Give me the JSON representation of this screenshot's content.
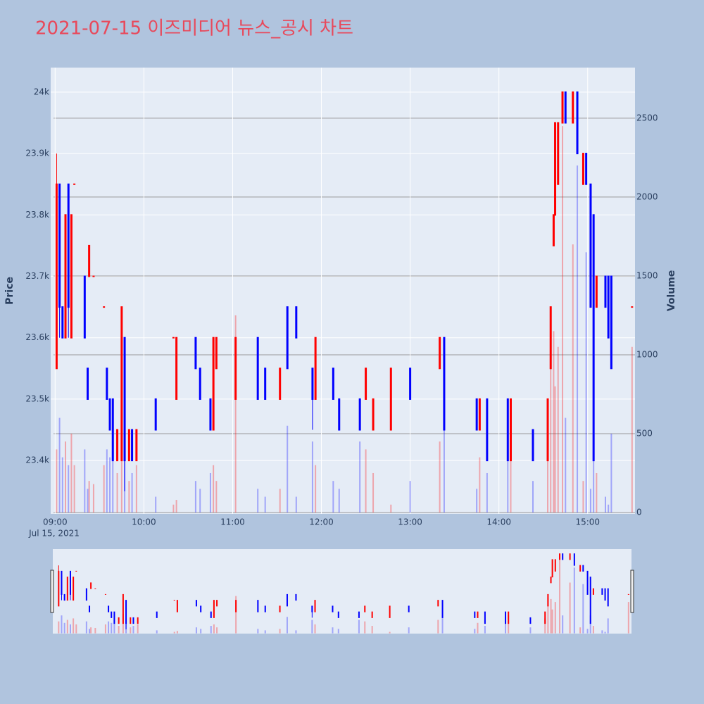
{
  "chart_data": {
    "type": "candlestick",
    "title": "2021-07-15 이즈미디어 뉴스_공시 차트",
    "y_label": "Price",
    "y2_label": "Volume",
    "x_date_label": "Jul 15, 2021",
    "increasing_color": "#ff0000",
    "decreasing_color": "#0000ff",
    "xlim": [
      "2021-07-15 08:57",
      "2021-07-15 15:32"
    ],
    "xticks": [
      {
        "value": "2021-07-15 09:00",
        "label": "09:00"
      },
      {
        "value": "2021-07-15 10:00",
        "label": "10:00"
      },
      {
        "value": "2021-07-15 11:00",
        "label": "11:00"
      },
      {
        "value": "2021-07-15 12:00",
        "label": "12:00"
      },
      {
        "value": "2021-07-15 13:00",
        "label": "13:00"
      },
      {
        "value": "2021-07-15 14:00",
        "label": "14:00"
      },
      {
        "value": "2021-07-15 15:00",
        "label": "15:00"
      }
    ],
    "ylim": [
      23313,
      24040
    ],
    "yticks": [
      {
        "value": 23400,
        "label": "23.4k"
      },
      {
        "value": 23500,
        "label": "23.5k"
      },
      {
        "value": 23600,
        "label": "23.6k"
      },
      {
        "value": 23700,
        "label": "23.7k"
      },
      {
        "value": 23800,
        "label": "23.8k"
      },
      {
        "value": 23900,
        "label": "23.9k"
      },
      {
        "value": 24000,
        "label": "24k"
      }
    ],
    "y2lim": [
      -9,
      2821
    ],
    "y2ticks": [
      0,
      500,
      1000,
      1500,
      2000,
      2500
    ],
    "x": [
      "2021-07-15 09:01",
      "2021-07-15 09:03",
      "2021-07-15 09:05",
      "2021-07-15 09:07",
      "2021-07-15 09:09",
      "2021-07-15 09:11",
      "2021-07-15 09:13",
      "2021-07-15 09:20",
      "2021-07-15 09:22",
      "2021-07-15 09:23",
      "2021-07-15 09:26",
      "2021-07-15 09:33",
      "2021-07-15 09:35",
      "2021-07-15 09:37",
      "2021-07-15 09:39",
      "2021-07-15 09:42",
      "2021-07-15 09:45",
      "2021-07-15 09:47",
      "2021-07-15 09:50",
      "2021-07-15 09:52",
      "2021-07-15 09:55",
      "2021-07-15 10:08",
      "2021-07-15 10:20",
      "2021-07-15 10:22",
      "2021-07-15 10:35",
      "2021-07-15 10:38",
      "2021-07-15 10:45",
      "2021-07-15 10:47",
      "2021-07-15 10:49",
      "2021-07-15 11:02",
      "2021-07-15 11:17",
      "2021-07-15 11:22",
      "2021-07-15 11:32",
      "2021-07-15 11:37",
      "2021-07-15 11:43",
      "2021-07-15 11:54",
      "2021-07-15 11:56",
      "2021-07-15 12:08",
      "2021-07-15 12:12",
      "2021-07-15 12:26",
      "2021-07-15 12:30",
      "2021-07-15 12:35",
      "2021-07-15 12:47",
      "2021-07-15 13:00",
      "2021-07-15 13:20",
      "2021-07-15 13:23",
      "2021-07-15 13:45",
      "2021-07-15 13:47",
      "2021-07-15 13:52",
      "2021-07-15 14:06",
      "2021-07-15 14:08",
      "2021-07-15 14:23",
      "2021-07-15 14:33",
      "2021-07-15 14:35",
      "2021-07-15 14:37",
      "2021-07-15 14:38",
      "2021-07-15 14:40",
      "2021-07-15 14:43",
      "2021-07-15 14:45",
      "2021-07-15 14:50",
      "2021-07-15 14:53",
      "2021-07-15 14:57",
      "2021-07-15 14:59",
      "2021-07-15 15:02",
      "2021-07-15 15:04",
      "2021-07-15 15:06",
      "2021-07-15 15:12",
      "2021-07-15 15:14",
      "2021-07-15 15:16",
      "2021-07-15 15:30"
    ],
    "open": [
      23550,
      23850,
      23650,
      23600,
      23850,
      23600,
      23850,
      23700,
      23550,
      23700,
      23700,
      23650,
      23550,
      23500,
      23500,
      23400,
      23400,
      23600,
      23400,
      23450,
      23400,
      23500,
      23600,
      23500,
      23600,
      23550,
      23500,
      23450,
      23550,
      23500,
      23600,
      23550,
      23500,
      23650,
      23650,
      23550,
      23500,
      23550,
      23500,
      23500,
      23500,
      23450,
      23450,
      23550,
      23550,
      23600,
      23500,
      23450,
      23500,
      23500,
      23400,
      23450,
      23400,
      23550,
      23750,
      23800,
      23850,
      23950,
      24000,
      23950,
      24000,
      23850,
      23900,
      23850,
      23800,
      23650,
      23700,
      23700,
      23700,
      23650
    ],
    "high": [
      23900,
      23850,
      23650,
      23800,
      23850,
      23800,
      23850,
      23700,
      23550,
      23750,
      23700,
      23650,
      23550,
      23500,
      23500,
      23450,
      23650,
      23600,
      23450,
      23450,
      23450,
      23500,
      23600,
      23600,
      23600,
      23550,
      23500,
      23600,
      23600,
      23600,
      23600,
      23550,
      23550,
      23650,
      23650,
      23550,
      23600,
      23550,
      23500,
      23500,
      23550,
      23500,
      23550,
      23550,
      23600,
      23600,
      23500,
      23500,
      23500,
      23500,
      23500,
      23450,
      23500,
      23650,
      23800,
      23950,
      23950,
      24000,
      24000,
      24000,
      24000,
      23900,
      23900,
      23850,
      23800,
      23700,
      23700,
      23700,
      23700,
      23650
    ],
    "low": [
      23550,
      23600,
      23600,
      23600,
      23600,
      23600,
      23850,
      23600,
      23500,
      23700,
      23700,
      23650,
      23500,
      23450,
      23400,
      23400,
      23400,
      23350,
      23400,
      23400,
      23400,
      23450,
      23600,
      23500,
      23550,
      23500,
      23450,
      23450,
      23550,
      23500,
      23500,
      23500,
      23500,
      23550,
      23600,
      23450,
      23500,
      23500,
      23450,
      23450,
      23500,
      23450,
      23450,
      23500,
      23550,
      23450,
      23450,
      23450,
      23400,
      23400,
      23400,
      23400,
      23400,
      23550,
      23750,
      23800,
      23850,
      23950,
      23950,
      23950,
      23900,
      23850,
      23850,
      23650,
      23400,
      23650,
      23650,
      23600,
      23550,
      23650
    ],
    "close": [
      23850,
      23650,
      23600,
      23800,
      23650,
      23800,
      23850,
      23600,
      23500,
      23750,
      23700,
      23650,
      23500,
      23450,
      23400,
      23450,
      23650,
      23400,
      23450,
      23400,
      23450,
      23450,
      23600,
      23600,
      23550,
      23500,
      23450,
      23600,
      23600,
      23600,
      23500,
      23500,
      23550,
      23550,
      23600,
      23500,
      23600,
      23500,
      23450,
      23450,
      23550,
      23500,
      23550,
      23500,
      23600,
      23450,
      23450,
      23500,
      23400,
      23400,
      23500,
      23400,
      23500,
      23650,
      23800,
      23950,
      23950,
      24000,
      23950,
      24000,
      23900,
      23900,
      23850,
      23650,
      23400,
      23700,
      23650,
      23600,
      23550,
      23650
    ],
    "volume": [
      400,
      600,
      350,
      450,
      300,
      500,
      300,
      400,
      150,
      200,
      180,
      300,
      400,
      350,
      450,
      250,
      650,
      500,
      200,
      250,
      300,
      100,
      50,
      80,
      200,
      150,
      250,
      300,
      200,
      1250,
      150,
      100,
      150,
      550,
      100,
      450,
      300,
      200,
      150,
      450,
      400,
      250,
      50,
      200,
      450,
      600,
      150,
      350,
      250,
      550,
      600,
      200,
      500,
      1200,
      1150,
      800,
      1050,
      2450,
      600,
      1700,
      2200,
      200,
      1650,
      150,
      600,
      250,
      100,
      50,
      500,
      1050
    ]
  }
}
